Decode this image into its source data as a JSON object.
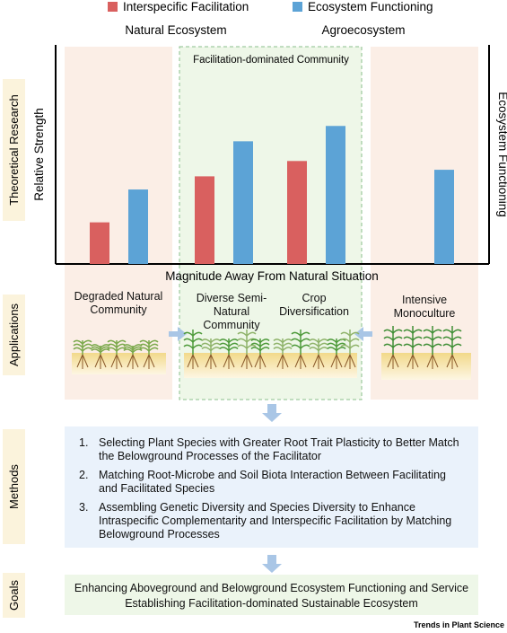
{
  "chart_data": {
    "type": "bar",
    "categories": [
      null,
      null,
      null,
      null
    ],
    "series": [
      {
        "name": "Interspecific Facilitation",
        "color": "#d9605f",
        "values": [
          19,
          40,
          47,
          null
        ]
      },
      {
        "name": "Ecosystem Functioning",
        "color": "#5ca3d6",
        "values": [
          34,
          56,
          63,
          43
        ]
      }
    ],
    "ylim": [
      0,
      100
    ],
    "y_label": "Relative Strength",
    "y2_label": "Ecosystem Functioning",
    "x_label": "Magnitude Away From Natural Situation"
  },
  "headers": {
    "natural": "Natural Ecosystem",
    "agro": "Agroecosystem",
    "community": "Facilitation-dominated Community"
  },
  "row_labels": [
    "Theoretical Research",
    "Applications",
    "Methods",
    "Goals"
  ],
  "applications": [
    "Degraded Natural Community",
    "Diverse Semi-Natural Community",
    "Crop Diversification",
    "Intensive Monoculture"
  ],
  "methods": [
    {
      "number": "1.",
      "text": "Selecting Plant Species with Greater Root Trait Plasticity to Better Match the Belowground Processes of the Facilitator"
    },
    {
      "number": "2.",
      "text": "Matching Root-Microbe and Soil Biota Interaction Between Facilitating and Facilitated Species"
    },
    {
      "number": "3.",
      "text": "Assembling Genetic Diversity and Species Diversity to Enhance Intraspecific Complementarity and Interspecific Facilitation by Matching Belowground Processes"
    }
  ],
  "goals": [
    "Enhancing Aboveground and Belowground Ecosystem Functioning and Service",
    "Establishing Facilitation-dominated Sustainable Ecosystem"
  ],
  "credit": "Trends in Plant Science"
}
